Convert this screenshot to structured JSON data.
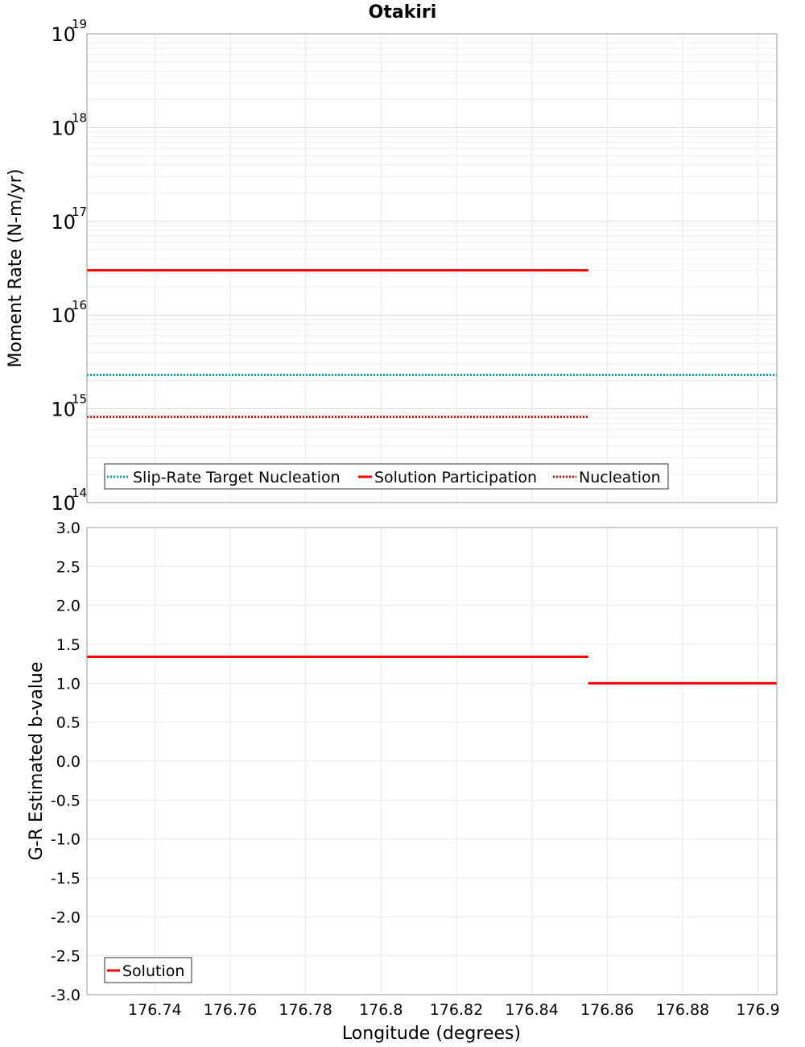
{
  "chart_data": [
    {
      "type": "line",
      "title": "Otakiri",
      "ylabel": "Moment Rate (N-m/yr)",
      "xlabel": "",
      "yscale": "log",
      "xlim": [
        176.722,
        176.905
      ],
      "ylim": [
        100000000000000.0,
        1e+19
      ],
      "y_ticks": [
        {
          "base": "10",
          "exp": "14",
          "value": 100000000000000.0
        },
        {
          "base": "10",
          "exp": "15",
          "value": 1000000000000000.0
        },
        {
          "base": "10",
          "exp": "16",
          "value": 1e+16
        },
        {
          "base": "10",
          "exp": "17",
          "value": 1e+17
        },
        {
          "base": "10",
          "exp": "18",
          "value": 1e+18
        },
        {
          "base": "10",
          "exp": "19",
          "value": 1e+19
        }
      ],
      "grid": true,
      "legend_position": "bottom-left",
      "series": [
        {
          "name": "Slip-Rate Target Nucleation",
          "color": "#00aab4",
          "style": "dotted",
          "x": [
            176.722,
            176.905
          ],
          "y": [
            2300000000000000.0,
            2300000000000000.0
          ]
        },
        {
          "name": "Solution Participation",
          "color": "#ff0000",
          "style": "solid",
          "x": [
            176.722,
            176.855
          ],
          "y": [
            3e+16,
            3e+16
          ]
        },
        {
          "name": "Nucleation",
          "color": "#ff0000",
          "style": "dotted",
          "x": [
            176.722,
            176.855
          ],
          "y": [
            820000000000000.0,
            820000000000000.0
          ]
        }
      ]
    },
    {
      "type": "line",
      "title": "",
      "ylabel": "G-R Estimated b-value",
      "xlabel": "Longitude (degrees)",
      "xlim": [
        176.722,
        176.905
      ],
      "ylim": [
        -3.0,
        3.0
      ],
      "x_ticks": [
        "176.74",
        "176.76",
        "176.78",
        "176.8",
        "176.82",
        "176.84",
        "176.86",
        "176.88",
        "176.9"
      ],
      "y_ticks": [
        "3.0",
        "2.5",
        "2.0",
        "1.5",
        "1.0",
        "0.5",
        "0.0",
        "-0.5",
        "-1.0",
        "-1.5",
        "-2.0",
        "-2.5",
        "-3.0"
      ],
      "grid": true,
      "legend_position": "bottom-left",
      "series": [
        {
          "name": "Solution",
          "color": "#ff0000",
          "style": "solid",
          "segments": [
            {
              "x": [
                176.722,
                176.855
              ],
              "y": [
                1.34,
                1.34
              ]
            },
            {
              "x": [
                176.855,
                176.905
              ],
              "y": [
                1.0,
                1.0
              ]
            }
          ]
        }
      ]
    }
  ]
}
